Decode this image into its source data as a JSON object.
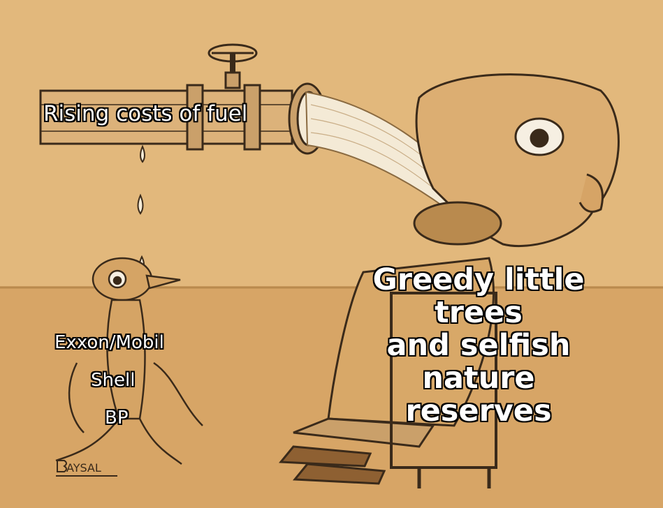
{
  "captions": {
    "pipe": "Rising costs of fuel",
    "small_figure": [
      "Exxon/Mobil",
      "Shell",
      "BP"
    ],
    "large_figure": [
      "Greedy little",
      "trees",
      "and selfish",
      "nature",
      "reserves"
    ]
  },
  "signature": "BAYSAL",
  "colors": {
    "background": "#e2b87c",
    "floor": "#d7a566",
    "ink": "#3a2a1a",
    "caption_fill": "#ffffff",
    "caption_outline": "#000000"
  }
}
